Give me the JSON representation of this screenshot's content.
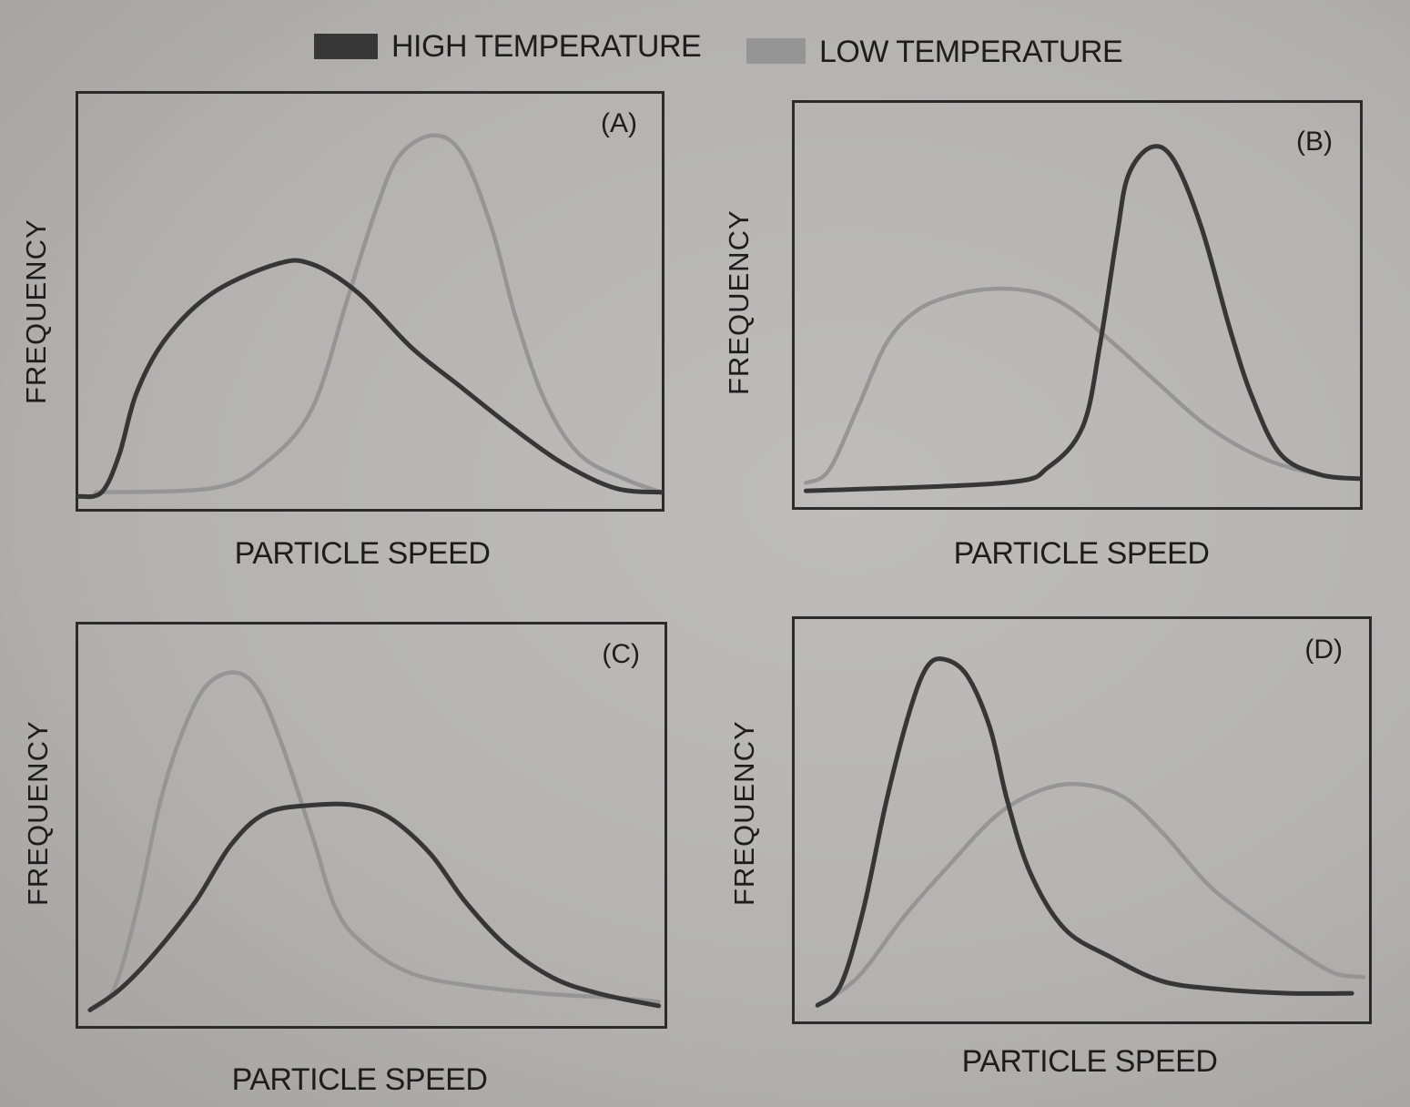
{
  "legend": {
    "placement": "top",
    "items": [
      {
        "label": "HIGH TEMPERATURE",
        "color": "#363636"
      },
      {
        "label": "LOW TEMPERATURE",
        "color": "#959595"
      }
    ]
  },
  "chart_data": [
    {
      "type": "line",
      "panel_label": "(A)",
      "xlabel": "PARTICLE SPEED",
      "ylabel": "FREQUENCY",
      "xlim": [
        0,
        10
      ],
      "ylim": [
        0,
        10
      ],
      "grid": false,
      "series": [
        {
          "name": "HIGH TEMPERATURE",
          "color": "#363636",
          "points": [
            [
              0.0,
              0.3
            ],
            [
              0.4,
              0.4
            ],
            [
              0.7,
              1.3
            ],
            [
              1.0,
              2.8
            ],
            [
              1.5,
              4.1
            ],
            [
              2.3,
              5.2
            ],
            [
              3.4,
              5.9
            ],
            [
              4.0,
              5.9
            ],
            [
              4.8,
              5.2
            ],
            [
              5.7,
              3.9
            ],
            [
              6.5,
              3.0
            ],
            [
              7.4,
              2.0
            ],
            [
              8.3,
              1.1
            ],
            [
              9.2,
              0.5
            ],
            [
              10.0,
              0.4
            ]
          ]
        },
        {
          "name": "LOW TEMPERATURE",
          "color": "#959595",
          "points": [
            [
              0.3,
              0.4
            ],
            [
              2.3,
              0.5
            ],
            [
              3.2,
              1.1
            ],
            [
              4.0,
              2.4
            ],
            [
              4.6,
              5.0
            ],
            [
              5.1,
              7.2
            ],
            [
              5.5,
              8.5
            ],
            [
              6.1,
              9.0
            ],
            [
              6.6,
              8.5
            ],
            [
              7.1,
              6.7
            ],
            [
              7.5,
              4.6
            ],
            [
              8.0,
              2.6
            ],
            [
              8.6,
              1.3
            ],
            [
              9.4,
              0.7
            ],
            [
              10.0,
              0.4
            ]
          ]
        }
      ]
    },
    {
      "type": "line",
      "panel_label": "(B)",
      "xlabel": "PARTICLE SPEED",
      "ylabel": "FREQUENCY",
      "xlim": [
        0,
        10
      ],
      "ylim": [
        0,
        10
      ],
      "grid": false,
      "series": [
        {
          "name": "HIGH TEMPERATURE",
          "color": "#363636",
          "points": [
            [
              0.2,
              0.4
            ],
            [
              3.7,
              0.6
            ],
            [
              4.5,
              1.0
            ],
            [
              5.1,
              2.0
            ],
            [
              5.4,
              4.0
            ],
            [
              5.7,
              6.7
            ],
            [
              5.9,
              8.2
            ],
            [
              6.3,
              8.9
            ],
            [
              6.7,
              8.6
            ],
            [
              7.2,
              6.9
            ],
            [
              7.7,
              4.4
            ],
            [
              8.1,
              2.7
            ],
            [
              8.6,
              1.3
            ],
            [
              9.3,
              0.8
            ],
            [
              10.0,
              0.7
            ]
          ]
        },
        {
          "name": "LOW TEMPERATURE",
          "color": "#959595",
          "points": [
            [
              0.2,
              0.6
            ],
            [
              0.6,
              0.9
            ],
            [
              1.1,
              2.4
            ],
            [
              1.6,
              4.0
            ],
            [
              2.1,
              4.8
            ],
            [
              2.7,
              5.2
            ],
            [
              3.5,
              5.4
            ],
            [
              4.3,
              5.3
            ],
            [
              4.9,
              4.9
            ],
            [
              5.6,
              4.1
            ],
            [
              6.4,
              3.1
            ],
            [
              7.3,
              2.0
            ],
            [
              8.3,
              1.2
            ],
            [
              9.3,
              0.8
            ],
            [
              10.0,
              0.7
            ]
          ]
        }
      ]
    },
    {
      "type": "line",
      "panel_label": "(C)",
      "xlabel": "PARTICLE SPEED",
      "ylabel": "FREQUENCY",
      "xlim": [
        0,
        10
      ],
      "ylim": [
        0,
        10
      ],
      "grid": false,
      "series": [
        {
          "name": "HIGH TEMPERATURE",
          "color": "#363636",
          "points": [
            [
              0.2,
              0.4
            ],
            [
              0.7,
              0.9
            ],
            [
              1.3,
              1.8
            ],
            [
              2.0,
              3.1
            ],
            [
              2.6,
              4.5
            ],
            [
              3.2,
              5.3
            ],
            [
              4.0,
              5.5
            ],
            [
              4.7,
              5.5
            ],
            [
              5.3,
              5.2
            ],
            [
              6.0,
              4.3
            ],
            [
              6.6,
              3.1
            ],
            [
              7.3,
              2.0
            ],
            [
              8.1,
              1.2
            ],
            [
              8.9,
              0.8
            ],
            [
              9.9,
              0.5
            ]
          ]
        },
        {
          "name": "LOW TEMPERATURE",
          "color": "#959595",
          "points": [
            [
              0.2,
              0.4
            ],
            [
              0.6,
              0.9
            ],
            [
              1.0,
              2.9
            ],
            [
              1.4,
              5.6
            ],
            [
              1.8,
              7.4
            ],
            [
              2.2,
              8.5
            ],
            [
              2.7,
              8.8
            ],
            [
              3.1,
              8.3
            ],
            [
              3.5,
              6.9
            ],
            [
              4.0,
              4.7
            ],
            [
              4.4,
              2.9
            ],
            [
              4.9,
              2.0
            ],
            [
              5.7,
              1.3
            ],
            [
              6.7,
              1.0
            ],
            [
              8.0,
              0.8
            ],
            [
              9.2,
              0.7
            ],
            [
              9.9,
              0.6
            ]
          ]
        }
      ]
    },
    {
      "type": "line",
      "panel_label": "(D)",
      "xlabel": "PARTICLE SPEED",
      "ylabel": "FREQUENCY",
      "xlim": [
        0,
        10
      ],
      "ylim": [
        0,
        10
      ],
      "grid": false,
      "series": [
        {
          "name": "HIGH TEMPERATURE",
          "color": "#363636",
          "points": [
            [
              0.4,
              0.4
            ],
            [
              0.8,
              0.9
            ],
            [
              1.2,
              2.8
            ],
            [
              1.6,
              5.5
            ],
            [
              2.0,
              7.7
            ],
            [
              2.3,
              8.8
            ],
            [
              2.6,
              9.0
            ],
            [
              3.0,
              8.6
            ],
            [
              3.4,
              7.3
            ],
            [
              3.7,
              5.5
            ],
            [
              4.1,
              3.7
            ],
            [
              4.7,
              2.3
            ],
            [
              5.5,
              1.6
            ],
            [
              6.4,
              1.0
            ],
            [
              7.4,
              0.8
            ],
            [
              8.6,
              0.7
            ],
            [
              9.7,
              0.7
            ]
          ]
        },
        {
          "name": "LOW TEMPERATURE",
          "color": "#959595",
          "points": [
            [
              0.4,
              0.4
            ],
            [
              1.1,
              1.1
            ],
            [
              1.9,
              2.6
            ],
            [
              2.7,
              3.9
            ],
            [
              3.5,
              5.1
            ],
            [
              4.2,
              5.7
            ],
            [
              4.9,
              5.9
            ],
            [
              5.7,
              5.6
            ],
            [
              6.4,
              4.7
            ],
            [
              7.2,
              3.4
            ],
            [
              8.0,
              2.5
            ],
            [
              8.8,
              1.7
            ],
            [
              9.4,
              1.2
            ],
            [
              9.9,
              1.1
            ]
          ]
        }
      ]
    }
  ]
}
